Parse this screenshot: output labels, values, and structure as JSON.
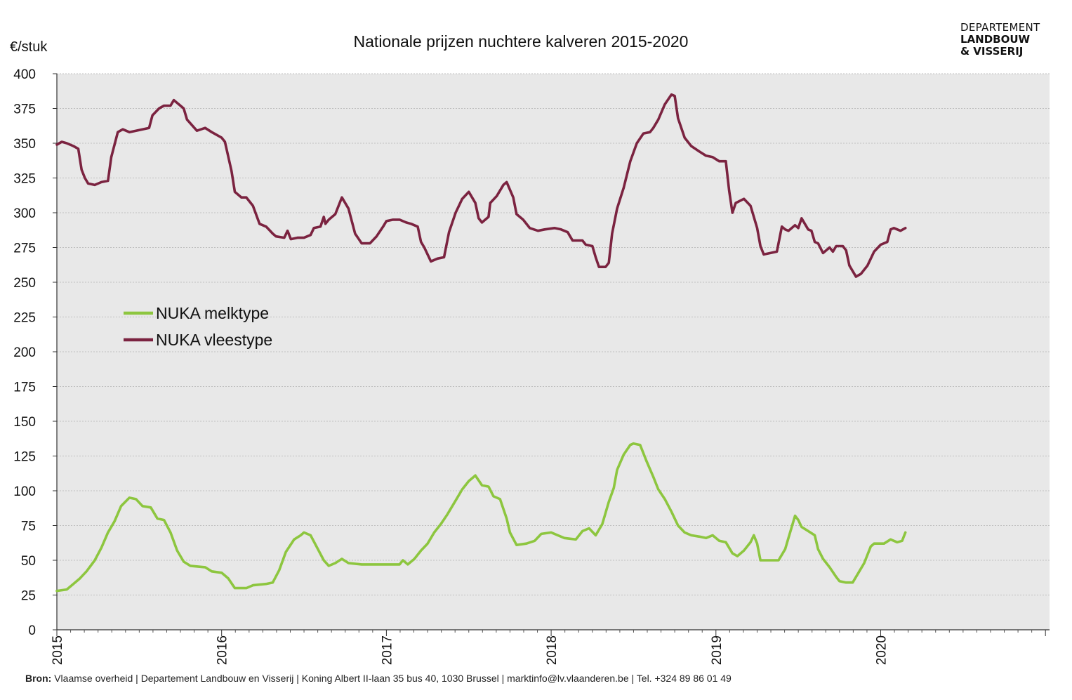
{
  "logo": {
    "line1": "DEPARTEMENT",
    "line2": "LANDBOUW",
    "line3": "& VISSERIJ"
  },
  "source": {
    "label": "Bron:",
    "text": " Vlaamse overheid | Departement Landbouw en Visserij | Koning Albert II-laan 35 bus 40, 1030 Brussel | marktinfo@lv.vlaanderen.be | Tel. +324 89 86 01 49"
  },
  "colors": {
    "plot_background": "#e8e8e8",
    "gridline": "#bfbfbf",
    "melktype": "#8dc63f",
    "vleestype": "#7b2340"
  },
  "chart_data": {
    "type": "line",
    "title": "Nationale prijzen nuchtere kalveren 2015-2020",
    "ylabel": "€/stuk",
    "xlabel": "",
    "ylim": [
      0,
      400
    ],
    "xlim": [
      2015.0,
      2021.0
    ],
    "y_ticks": [
      "0",
      "25",
      "50",
      "75",
      "100",
      "125",
      "150",
      "175",
      "200",
      "225",
      "250",
      "275",
      "300",
      "325",
      "350",
      "375",
      "400"
    ],
    "x_ticks": [
      "2015",
      "2016",
      "2017",
      "2018",
      "2019",
      "2020"
    ],
    "grid": true,
    "legend_position": "center-left",
    "series": [
      {
        "name": "NUKA melktype",
        "color": "#8dc63f",
        "points": [
          [
            2015.0,
            28
          ],
          [
            2015.06,
            29
          ],
          [
            2015.1,
            33
          ],
          [
            2015.14,
            37
          ],
          [
            2015.18,
            42
          ],
          [
            2015.23,
            50
          ],
          [
            2015.27,
            59
          ],
          [
            2015.31,
            70
          ],
          [
            2015.35,
            78
          ],
          [
            2015.39,
            89
          ],
          [
            2015.44,
            95
          ],
          [
            2015.48,
            94
          ],
          [
            2015.52,
            89
          ],
          [
            2015.57,
            88
          ],
          [
            2015.61,
            80
          ],
          [
            2015.65,
            79
          ],
          [
            2015.69,
            70
          ],
          [
            2015.73,
            57
          ],
          [
            2015.77,
            49
          ],
          [
            2015.81,
            46
          ],
          [
            2015.9,
            45
          ],
          [
            2015.94,
            42
          ],
          [
            2016.0,
            41
          ],
          [
            2016.04,
            37
          ],
          [
            2016.08,
            30
          ],
          [
            2016.15,
            30
          ],
          [
            2016.19,
            32
          ],
          [
            2016.27,
            33
          ],
          [
            2016.31,
            34
          ],
          [
            2016.35,
            43
          ],
          [
            2016.39,
            56
          ],
          [
            2016.44,
            65
          ],
          [
            2016.48,
            68
          ],
          [
            2016.5,
            70
          ],
          [
            2016.54,
            68
          ],
          [
            2016.58,
            59
          ],
          [
            2016.62,
            50
          ],
          [
            2016.65,
            46
          ],
          [
            2016.69,
            48
          ],
          [
            2016.73,
            51
          ],
          [
            2016.77,
            48
          ],
          [
            2016.85,
            47
          ],
          [
            2016.96,
            47
          ],
          [
            2017.04,
            47
          ],
          [
            2017.08,
            47
          ],
          [
            2017.1,
            50
          ],
          [
            2017.13,
            47
          ],
          [
            2017.17,
            51
          ],
          [
            2017.21,
            57
          ],
          [
            2017.25,
            62
          ],
          [
            2017.29,
            70
          ],
          [
            2017.33,
            76
          ],
          [
            2017.37,
            83
          ],
          [
            2017.42,
            93
          ],
          [
            2017.46,
            101
          ],
          [
            2017.5,
            107
          ],
          [
            2017.54,
            111
          ],
          [
            2017.58,
            104
          ],
          [
            2017.62,
            103
          ],
          [
            2017.65,
            96
          ],
          [
            2017.69,
            94
          ],
          [
            2017.73,
            80
          ],
          [
            2017.75,
            70
          ],
          [
            2017.79,
            61
          ],
          [
            2017.85,
            62
          ],
          [
            2017.9,
            64
          ],
          [
            2017.94,
            69
          ],
          [
            2018.0,
            70
          ],
          [
            2018.04,
            68
          ],
          [
            2018.08,
            66
          ],
          [
            2018.15,
            65
          ],
          [
            2018.19,
            71
          ],
          [
            2018.23,
            73
          ],
          [
            2018.27,
            68
          ],
          [
            2018.31,
            76
          ],
          [
            2018.35,
            92
          ],
          [
            2018.38,
            102
          ],
          [
            2018.4,
            115
          ],
          [
            2018.44,
            126
          ],
          [
            2018.48,
            133
          ],
          [
            2018.5,
            134
          ],
          [
            2018.54,
            133
          ],
          [
            2018.58,
            121
          ],
          [
            2018.62,
            110
          ],
          [
            2018.65,
            101
          ],
          [
            2018.69,
            94
          ],
          [
            2018.73,
            85
          ],
          [
            2018.77,
            75
          ],
          [
            2018.81,
            70
          ],
          [
            2018.85,
            68
          ],
          [
            2018.9,
            67
          ],
          [
            2018.94,
            66
          ],
          [
            2018.98,
            68
          ],
          [
            2019.02,
            64
          ],
          [
            2019.06,
            63
          ],
          [
            2019.1,
            55
          ],
          [
            2019.13,
            53
          ],
          [
            2019.17,
            57
          ],
          [
            2019.21,
            63
          ],
          [
            2019.23,
            68
          ],
          [
            2019.25,
            62
          ],
          [
            2019.27,
            50
          ],
          [
            2019.33,
            50
          ],
          [
            2019.38,
            50
          ],
          [
            2019.42,
            58
          ],
          [
            2019.44,
            66
          ],
          [
            2019.46,
            74
          ],
          [
            2019.48,
            82
          ],
          [
            2019.5,
            79
          ],
          [
            2019.52,
            74
          ],
          [
            2019.56,
            71
          ],
          [
            2019.6,
            68
          ],
          [
            2019.62,
            58
          ],
          [
            2019.65,
            51
          ],
          [
            2019.69,
            45
          ],
          [
            2019.73,
            38
          ],
          [
            2019.75,
            35
          ],
          [
            2019.79,
            34
          ],
          [
            2019.83,
            34
          ],
          [
            2019.87,
            42
          ],
          [
            2019.9,
            48
          ],
          [
            2019.94,
            60
          ],
          [
            2019.96,
            62
          ],
          [
            2020.02,
            62
          ],
          [
            2020.06,
            65
          ],
          [
            2020.1,
            63
          ],
          [
            2020.13,
            64
          ],
          [
            2020.15,
            70
          ]
        ]
      },
      {
        "name": "NUKA vleestype",
        "color": "#7b2340",
        "points": [
          [
            2015.0,
            349
          ],
          [
            2015.03,
            351
          ],
          [
            2015.06,
            350
          ],
          [
            2015.08,
            349
          ],
          [
            2015.1,
            348
          ],
          [
            2015.13,
            346
          ],
          [
            2015.15,
            331
          ],
          [
            2015.17,
            325
          ],
          [
            2015.19,
            321
          ],
          [
            2015.23,
            320
          ],
          [
            2015.27,
            322
          ],
          [
            2015.31,
            323
          ],
          [
            2015.33,
            340
          ],
          [
            2015.37,
            358
          ],
          [
            2015.4,
            360
          ],
          [
            2015.44,
            358
          ],
          [
            2015.48,
            359
          ],
          [
            2015.52,
            360
          ],
          [
            2015.56,
            361
          ],
          [
            2015.58,
            370
          ],
          [
            2015.62,
            375
          ],
          [
            2015.65,
            377
          ],
          [
            2015.69,
            377
          ],
          [
            2015.71,
            381
          ],
          [
            2015.75,
            377
          ],
          [
            2015.77,
            375
          ],
          [
            2015.79,
            367
          ],
          [
            2015.85,
            359
          ],
          [
            2015.9,
            361
          ],
          [
            2015.94,
            358
          ],
          [
            2016.0,
            354
          ],
          [
            2016.02,
            351
          ],
          [
            2016.06,
            330
          ],
          [
            2016.08,
            315
          ],
          [
            2016.12,
            311
          ],
          [
            2016.15,
            311
          ],
          [
            2016.19,
            305
          ],
          [
            2016.23,
            292
          ],
          [
            2016.27,
            290
          ],
          [
            2016.31,
            285
          ],
          [
            2016.33,
            283
          ],
          [
            2016.38,
            282
          ],
          [
            2016.4,
            287
          ],
          [
            2016.42,
            281
          ],
          [
            2016.46,
            282
          ],
          [
            2016.5,
            282
          ],
          [
            2016.54,
            284
          ],
          [
            2016.56,
            289
          ],
          [
            2016.6,
            290
          ],
          [
            2016.62,
            297
          ],
          [
            2016.63,
            292
          ],
          [
            2016.65,
            295
          ],
          [
            2016.69,
            299
          ],
          [
            2016.73,
            311
          ],
          [
            2016.77,
            303
          ],
          [
            2016.81,
            285
          ],
          [
            2016.85,
            278
          ],
          [
            2016.9,
            278
          ],
          [
            2016.94,
            283
          ],
          [
            2016.98,
            290
          ],
          [
            2017.0,
            294
          ],
          [
            2017.04,
            295
          ],
          [
            2017.08,
            295
          ],
          [
            2017.12,
            293
          ],
          [
            2017.15,
            292
          ],
          [
            2017.19,
            290
          ],
          [
            2017.21,
            279
          ],
          [
            2017.23,
            275
          ],
          [
            2017.27,
            265
          ],
          [
            2017.31,
            267
          ],
          [
            2017.35,
            268
          ],
          [
            2017.38,
            286
          ],
          [
            2017.42,
            300
          ],
          [
            2017.46,
            310
          ],
          [
            2017.5,
            315
          ],
          [
            2017.54,
            307
          ],
          [
            2017.56,
            296
          ],
          [
            2017.58,
            293
          ],
          [
            2017.62,
            297
          ],
          [
            2017.63,
            307
          ],
          [
            2017.67,
            312
          ],
          [
            2017.71,
            320
          ],
          [
            2017.73,
            322
          ],
          [
            2017.77,
            311
          ],
          [
            2017.79,
            299
          ],
          [
            2017.83,
            295
          ],
          [
            2017.87,
            289
          ],
          [
            2017.92,
            287
          ],
          [
            2017.96,
            288
          ],
          [
            2018.02,
            289
          ],
          [
            2018.06,
            288
          ],
          [
            2018.1,
            286
          ],
          [
            2018.13,
            280
          ],
          [
            2018.19,
            280
          ],
          [
            2018.21,
            277
          ],
          [
            2018.25,
            276
          ],
          [
            2018.27,
            268
          ],
          [
            2018.29,
            261
          ],
          [
            2018.33,
            261
          ],
          [
            2018.35,
            264
          ],
          [
            2018.37,
            285
          ],
          [
            2018.4,
            303
          ],
          [
            2018.44,
            318
          ],
          [
            2018.48,
            337
          ],
          [
            2018.52,
            350
          ],
          [
            2018.56,
            357
          ],
          [
            2018.6,
            358
          ],
          [
            2018.62,
            361
          ],
          [
            2018.65,
            367
          ],
          [
            2018.69,
            378
          ],
          [
            2018.73,
            385
          ],
          [
            2018.75,
            384
          ],
          [
            2018.77,
            368
          ],
          [
            2018.81,
            354
          ],
          [
            2018.85,
            348
          ],
          [
            2018.9,
            344
          ],
          [
            2018.94,
            341
          ],
          [
            2018.98,
            340
          ],
          [
            2019.02,
            337
          ],
          [
            2019.06,
            337
          ],
          [
            2019.08,
            316
          ],
          [
            2019.1,
            300
          ],
          [
            2019.12,
            307
          ],
          [
            2019.17,
            310
          ],
          [
            2019.21,
            305
          ],
          [
            2019.25,
            289
          ],
          [
            2019.27,
            276
          ],
          [
            2019.29,
            270
          ],
          [
            2019.33,
            271
          ],
          [
            2019.37,
            272
          ],
          [
            2019.4,
            290
          ],
          [
            2019.42,
            288
          ],
          [
            2019.44,
            287
          ],
          [
            2019.48,
            291
          ],
          [
            2019.5,
            289
          ],
          [
            2019.52,
            296
          ],
          [
            2019.56,
            288
          ],
          [
            2019.58,
            287
          ],
          [
            2019.6,
            279
          ],
          [
            2019.62,
            278
          ],
          [
            2019.65,
            271
          ],
          [
            2019.69,
            275
          ],
          [
            2019.71,
            272
          ],
          [
            2019.73,
            276
          ],
          [
            2019.77,
            276
          ],
          [
            2019.79,
            273
          ],
          [
            2019.81,
            262
          ],
          [
            2019.85,
            254
          ],
          [
            2019.88,
            256
          ],
          [
            2019.92,
            262
          ],
          [
            2019.96,
            272
          ],
          [
            2020.0,
            277
          ],
          [
            2020.04,
            279
          ],
          [
            2020.06,
            288
          ],
          [
            2020.08,
            289
          ],
          [
            2020.12,
            287
          ],
          [
            2020.15,
            289
          ]
        ]
      }
    ]
  }
}
